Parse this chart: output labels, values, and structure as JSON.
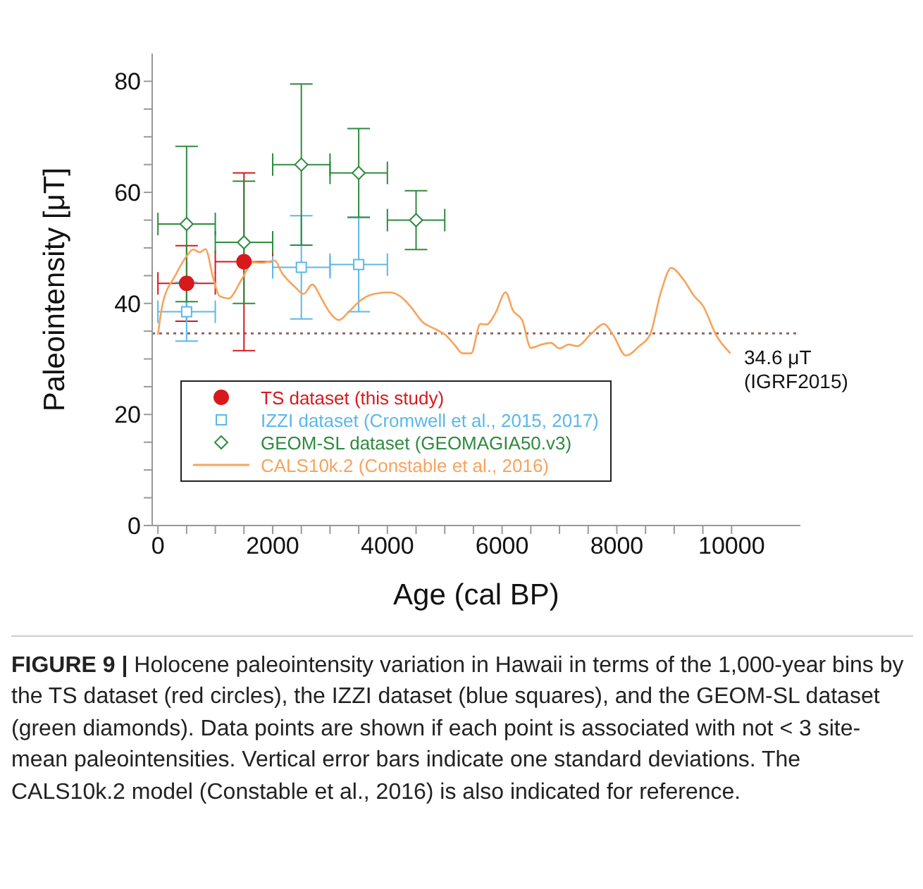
{
  "chart_data": {
    "type": "scatter",
    "xlabel": "Age (cal BP)",
    "ylabel": "Paleointensity [μT]",
    "xlim": [
      -100,
      11200
    ],
    "ylim": [
      0,
      85
    ],
    "xticks": [
      0,
      {
        "value": 500,
        "label": null
      },
      {
        "value": 1000,
        "label": null
      },
      {
        "value": 1500,
        "label": null
      },
      2000,
      {
        "value": 2500,
        "label": null
      },
      {
        "value": 3000,
        "label": null
      },
      {
        "value": 3500,
        "label": null
      },
      4000,
      {
        "value": 4500,
        "label": null
      },
      {
        "value": 5000,
        "label": null
      },
      {
        "value": 5500,
        "label": null
      },
      6000,
      {
        "value": 6500,
        "label": null
      },
      {
        "value": 7000,
        "label": null
      },
      {
        "value": 7500,
        "label": null
      },
      8000,
      {
        "value": 8500,
        "label": null
      },
      {
        "value": 9000,
        "label": null
      },
      {
        "value": 9500,
        "label": null
      },
      10000
    ],
    "yticks": [
      0,
      {
        "value": 5,
        "label": null
      },
      {
        "value": 10,
        "label": null
      },
      {
        "value": 15,
        "label": null
      },
      20,
      {
        "value": 25,
        "label": null
      },
      {
        "value": 30,
        "label": null
      },
      {
        "value": 35,
        "label": null
      },
      40,
      {
        "value": 45,
        "label": null
      },
      {
        "value": 50,
        "label": null
      },
      {
        "value": 55,
        "label": null
      },
      60,
      {
        "value": 65,
        "label": null
      },
      {
        "value": 70,
        "label": null
      },
      {
        "value": 75,
        "label": null
      },
      80
    ],
    "grid": false,
    "legend": "bottom left",
    "series": [
      {
        "name": "TS dataset (this study)",
        "marker": "circle",
        "color": "#d7191c",
        "x": [
          500,
          1500
        ],
        "values": [
          43.6,
          47.5
        ],
        "errors": [
          6.8,
          16
        ],
        "xerrors": [
          500,
          500
        ]
      },
      {
        "name": "IZZI dataset (Cromwell et al., 2015, 2017)",
        "marker": "square",
        "color": "#5bb8e8",
        "x": [
          500,
          2500,
          3500
        ],
        "values": [
          38.5,
          46.5,
          47
        ],
        "errors": [
          5.3,
          9.3,
          8.5
        ],
        "xerrors": [
          500,
          500,
          500
        ]
      },
      {
        "name": "GEOM-SL dataset (GEOMAGIA50.v3)",
        "marker": "diamond",
        "color": "#2e8b3e",
        "x": [
          500,
          1500,
          2500,
          3500,
          4500
        ],
        "values": [
          54.3,
          51,
          65,
          63.5,
          55
        ],
        "errors": [
          14,
          11,
          14.5,
          8,
          5.3
        ],
        "xerrors": [
          500,
          500,
          500,
          500,
          500
        ]
      },
      {
        "name": "CALS10k.2 (Constable et al., 2016)",
        "type": "line",
        "marker": "none",
        "color": "#f7a35c",
        "x": [
          0,
          76,
          307,
          500,
          615,
          730,
          830,
          960,
          1077,
          1230,
          1460,
          1650,
          1810,
          2040,
          2155,
          2385,
          2540,
          2690,
          2850,
          3000,
          3155,
          3310,
          3540,
          3770,
          4040,
          4235,
          4390,
          4620,
          4850,
          5000,
          5160,
          5310,
          5460,
          5620,
          5730,
          5885,
          6060,
          6190,
          6350,
          6500,
          6690,
          6850,
          7000,
          7160,
          7310,
          7540,
          7775,
          7930,
          8160,
          8390,
          8580,
          8770,
          8950,
          9160,
          9350,
          9500,
          9730,
          9980
        ],
        "values": [
          34.4,
          39.6,
          45.1,
          48.5,
          49.7,
          49.2,
          49.8,
          44.7,
          41.3,
          40.9,
          44.3,
          47.4,
          47.3,
          47.7,
          45.6,
          43,
          41.7,
          43.4,
          40.9,
          38.3,
          37,
          38.3,
          40.6,
          41.7,
          42,
          41.2,
          39.6,
          36.6,
          35.3,
          34.4,
          32.7,
          31,
          31,
          36.3,
          36.2,
          38.3,
          42,
          38.7,
          37,
          32,
          32.6,
          32.9,
          31.9,
          32.6,
          32.3,
          34.4,
          36.3,
          34.4,
          30.6,
          32.3,
          34.4,
          42.1,
          46.4,
          44.3,
          41.3,
          39.6,
          34.3,
          31
        ]
      }
    ],
    "ref_lines": [
      {
        "axis": "y",
        "value": 34.6,
        "label": "34.6 μT\n(IGRF2015)",
        "color": "#8a6a6a",
        "line_style": "dotted"
      }
    ],
    "annotations": [
      "FIGURE 9 | Holocene paleointensity variation in Hawaii in terms of the 1,000-year bins by the TS dataset (red circles), the IZZI dataset (blue squares), and the GEOM-SL dataset (green diamonds). Data points are shown if each point is associated with not < 3 site-mean paleointensities. Vertical error bars indicate one standard deviations. The CALS10k.2 model (Constable et al., 2016) is also indicated for reference."
    ]
  }
}
